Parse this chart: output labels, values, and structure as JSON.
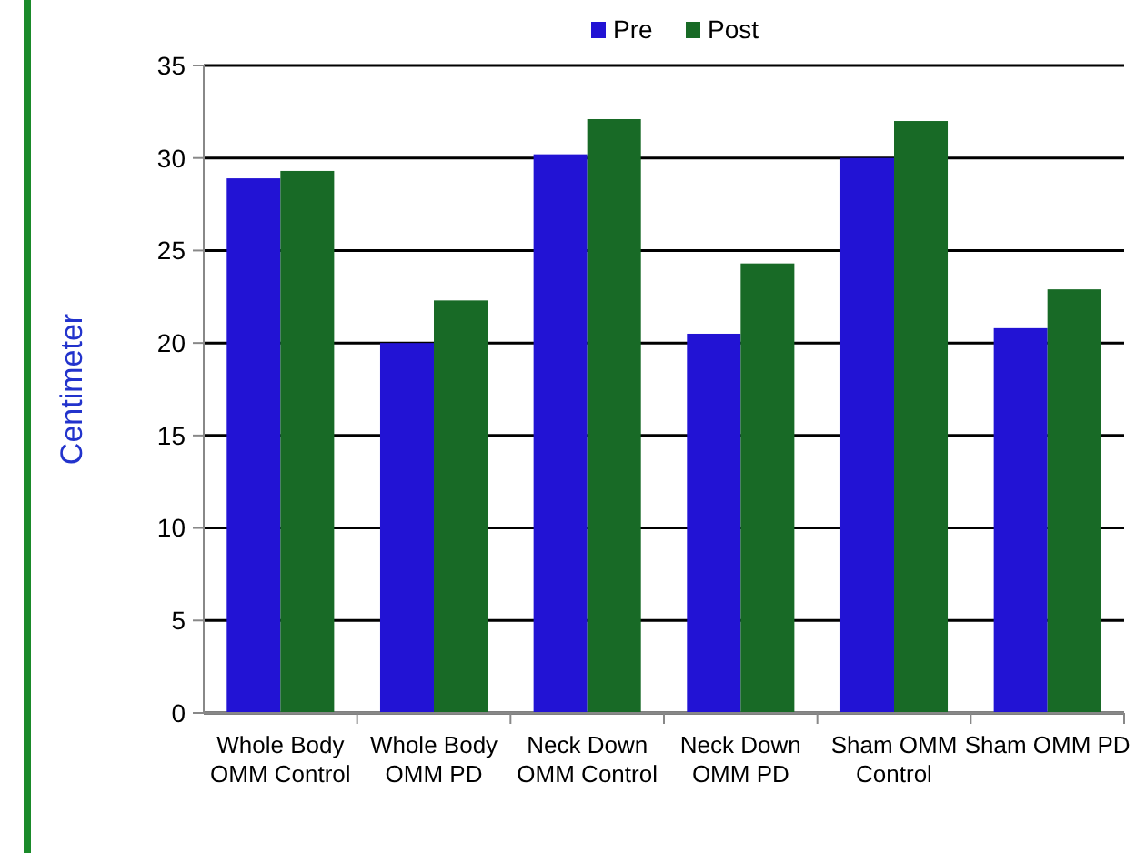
{
  "chart_data": {
    "type": "bar",
    "ylabel": "Centimeter",
    "categories": [
      "Whole Body OMM Control",
      "Whole Body OMM PD",
      "Neck Down OMM Control",
      "Neck Down OMM PD",
      "Sham OMM Control",
      "Sham OMM PD"
    ],
    "series": [
      {
        "name": "Pre",
        "color": "#2213d4",
        "values": [
          28.9,
          20,
          30.2,
          20.5,
          30,
          20.8
        ]
      },
      {
        "name": "Post",
        "color": "#186a26",
        "values": [
          29.3,
          22.3,
          32.1,
          24.3,
          32,
          22.9
        ]
      }
    ],
    "ylim": [
      0,
      35
    ],
    "yticks": [
      0,
      5,
      10,
      15,
      20,
      25,
      30,
      35
    ],
    "grid": "y",
    "legend": "top"
  }
}
